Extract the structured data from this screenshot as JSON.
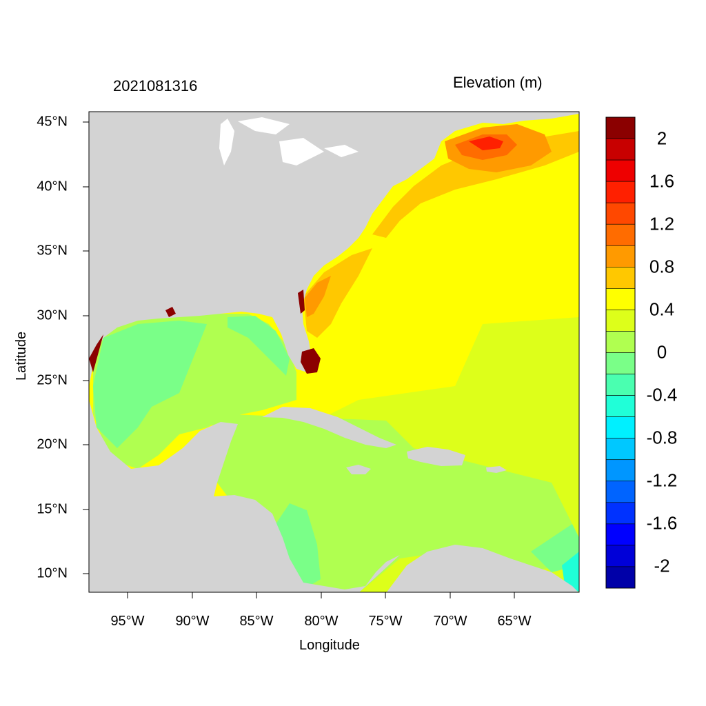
{
  "left_title": "2021081316",
  "right_title": "Elevation (m)",
  "x_axis": {
    "title": "Longitude",
    "ticks": [
      "95°W",
      "90°W",
      "85°W",
      "80°W",
      "75°W",
      "70°W",
      "65°W"
    ]
  },
  "y_axis": {
    "title": "Latitude",
    "ticks": [
      "45°N",
      "40°N",
      "35°N",
      "30°N",
      "25°N",
      "20°N",
      "15°N",
      "10°N"
    ]
  },
  "colorbar": {
    "labels": [
      "2",
      "1.6",
      "1.2",
      "0.8",
      "0.4",
      "0",
      "-0.4",
      "-0.8",
      "-1.2",
      "-1.6",
      "-2"
    ],
    "colors": [
      "#8b0000",
      "#c80000",
      "#ee0000",
      "#ff2000",
      "#ff4800",
      "#ff6c00",
      "#ff9a00",
      "#ffc800",
      "#ffff00",
      "#ddff1a",
      "#b0ff50",
      "#7aff88",
      "#4affb0",
      "#20ffd8",
      "#00f0ff",
      "#00c8ff",
      "#0096ff",
      "#0064ff",
      "#0032ff",
      "#0000ff",
      "#0000d8",
      "#0000a8"
    ]
  },
  "land_color": "#d3d3d3",
  "map_data": {
    "region": "North Atlantic / Gulf of Mexico / Caribbean Sea",
    "lon_range": [
      "98°W",
      "60°W"
    ],
    "lat_range": [
      "8.5°N",
      "46°N"
    ],
    "variable": "Elevation (m)"
  }
}
